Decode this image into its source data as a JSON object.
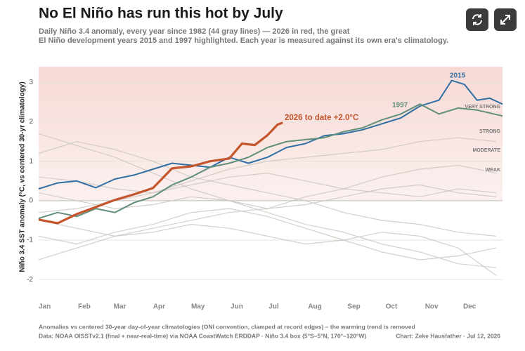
{
  "chart_data": {
    "type": "line",
    "title": "No El Niño has run this hot by July",
    "subtitle": [
      "Daily Niño 3.4 anomaly, every year since 1982 (44 gray lines) — 2026 in red, the great",
      "El Niño development years 2015 and 1997 highlighted. Each year is measured against its own era's climatology."
    ],
    "y_label": "Niño 3.4 SST anomaly (°C, vs centered 30-yr climatology)",
    "xlim": [
      0,
      365
    ],
    "xticks": [
      {
        "value": 0,
        "label": "Jan"
      },
      {
        "value": 31,
        "label": "Feb"
      },
      {
        "value": 59,
        "label": "Mar"
      },
      {
        "value": 90,
        "label": "Apr"
      },
      {
        "value": 120,
        "label": "May"
      },
      {
        "value": 151,
        "label": "Jun"
      },
      {
        "value": 181,
        "label": "Jul"
      },
      {
        "value": 212,
        "label": "Aug"
      },
      {
        "value": 243,
        "label": "Sep"
      },
      {
        "value": 273,
        "label": "Oct"
      },
      {
        "value": 304,
        "label": "Nov"
      },
      {
        "value": 334,
        "label": "Dec"
      }
    ],
    "ylim": [
      -2.3,
      3.4
    ],
    "yticks": [
      -2,
      -1,
      0,
      1,
      2,
      3
    ],
    "grid": true,
    "strength_labels": [
      "VERY STRONG",
      "STRONG",
      "MODERATE",
      "WEAK"
    ],
    "background_color": "#c8c4be",
    "background_x": [
      0,
      30,
      60,
      90,
      120,
      150,
      180,
      210,
      240,
      270,
      300,
      330,
      360
    ],
    "background_series": [
      {
        "values": [
          0.6,
          0.5,
          0.3,
          0.2,
          0.4,
          0.6,
          0.7,
          0.5,
          0.3,
          0.2,
          0.1,
          0.3,
          0.2
        ]
      },
      {
        "values": [
          -0.9,
          -1.1,
          -0.8,
          -0.6,
          -0.3,
          -0.2,
          -0.4,
          -0.7,
          -1.0,
          -1.3,
          -1.5,
          -1.4,
          -1.2
        ]
      },
      {
        "values": [
          1.7,
          1.4,
          1.1,
          0.7,
          0.3,
          0.0,
          -0.3,
          -0.6,
          -0.8,
          -1.1,
          -1.3,
          -1.6,
          -1.7
        ]
      },
      {
        "values": [
          -0.3,
          -0.2,
          0.0,
          0.2,
          0.5,
          0.8,
          1.0,
          1.1,
          1.2,
          1.3,
          1.5,
          1.6,
          1.5
        ]
      },
      {
        "values": [
          0.2,
          0.0,
          -0.2,
          -0.1,
          0.1,
          0.0,
          -0.2,
          -0.1,
          0.1,
          0.3,
          0.4,
          0.2,
          0.1
        ]
      },
      {
        "values": [
          1.2,
          1.5,
          1.3,
          1.0,
          0.6,
          0.4,
          0.2,
          0.0,
          -0.3,
          -0.5,
          -0.6,
          -0.8,
          -0.9
        ]
      },
      {
        "values": [
          -1.5,
          -1.2,
          -0.9,
          -0.7,
          -0.5,
          -0.3,
          -0.2,
          0.1,
          0.3,
          0.6,
          0.8,
          0.9,
          0.7
        ]
      },
      {
        "values": [
          -0.5,
          -0.7,
          -0.9,
          -0.8,
          -0.6,
          -0.7,
          -0.9,
          -1.1,
          -1.0,
          -0.8,
          -0.9,
          -1.2,
          -1.9
        ]
      }
    ],
    "series": [
      {
        "name": "2015",
        "color": "#2f6fa3",
        "x": [
          0,
          15,
          30,
          45,
          60,
          75,
          90,
          105,
          120,
          135,
          150,
          165,
          180,
          195,
          210,
          225,
          240,
          255,
          270,
          285,
          300,
          315,
          325,
          335,
          345,
          355,
          365
        ],
        "values": [
          0.3,
          0.45,
          0.5,
          0.33,
          0.55,
          0.65,
          0.8,
          0.95,
          0.9,
          0.85,
          1.1,
          0.95,
          1.1,
          1.35,
          1.45,
          1.65,
          1.7,
          1.8,
          1.95,
          2.1,
          2.4,
          2.55,
          3.05,
          2.95,
          2.55,
          2.6,
          2.45
        ]
      },
      {
        "name": "1997",
        "color": "#5f8f79",
        "x": [
          0,
          15,
          30,
          45,
          60,
          75,
          90,
          105,
          120,
          135,
          150,
          165,
          180,
          195,
          210,
          225,
          240,
          255,
          270,
          285,
          300,
          315,
          330,
          345,
          365
        ],
        "values": [
          -0.45,
          -0.3,
          -0.4,
          -0.2,
          -0.3,
          -0.05,
          0.1,
          0.4,
          0.6,
          0.85,
          0.95,
          1.1,
          1.35,
          1.5,
          1.55,
          1.6,
          1.75,
          1.85,
          2.05,
          2.2,
          2.45,
          2.2,
          2.35,
          2.3,
          2.15
        ]
      },
      {
        "name": "2026 to date  +2.0°C",
        "color": "#c4552d",
        "x": [
          0,
          15,
          30,
          45,
          60,
          75,
          90,
          105,
          120,
          135,
          150,
          160,
          170,
          180,
          188,
          192
        ],
        "values": [
          -0.48,
          -0.57,
          -0.34,
          -0.16,
          0.02,
          0.16,
          0.32,
          0.82,
          0.87,
          1.0,
          1.07,
          1.45,
          1.41,
          1.66,
          1.93,
          1.98
        ]
      }
    ],
    "footnote": [
      "Anomalies vs centered 30-year day-of-year climatologies (ONI convention, clamped at record edges) – the warming trend is removed",
      "Data: NOAA OISSTv2.1 (final + near-real-time) via NOAA CoastWatch ERDDAP · Niño 3.4 box (5°S–5°N, 170°–120°W)"
    ],
    "credit": "Chart: Zeke Hausfather · Jul 12, 2026"
  }
}
